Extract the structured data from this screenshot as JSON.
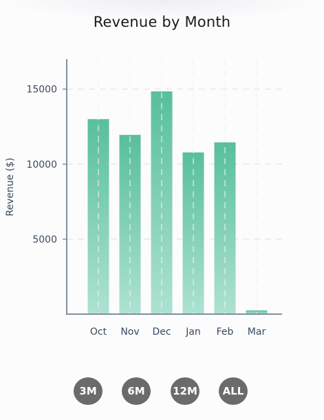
{
  "chart_data": {
    "type": "bar",
    "title": "Revenue by Month",
    "xlabel": "",
    "ylabel": "Revenue ($)",
    "categories": [
      "Oct",
      "Nov",
      "Dec",
      "Jan",
      "Feb",
      "Mar"
    ],
    "values": [
      13000,
      11950,
      14850,
      10780,
      11450,
      250
    ],
    "ylim": [
      0,
      17000
    ],
    "yticks": [
      5000,
      10000,
      15000
    ],
    "grid": true,
    "bar_color_top": "#58bf9c",
    "bar_color_bottom": "#aee2d1",
    "axis_color": "#7f909e",
    "grid_color": "#e2e4e8"
  },
  "range_selector": {
    "options": [
      "3M",
      "6M",
      "12M",
      "ALL"
    ],
    "button_color": "#6b6b6b",
    "text_color": "#ffffff"
  }
}
